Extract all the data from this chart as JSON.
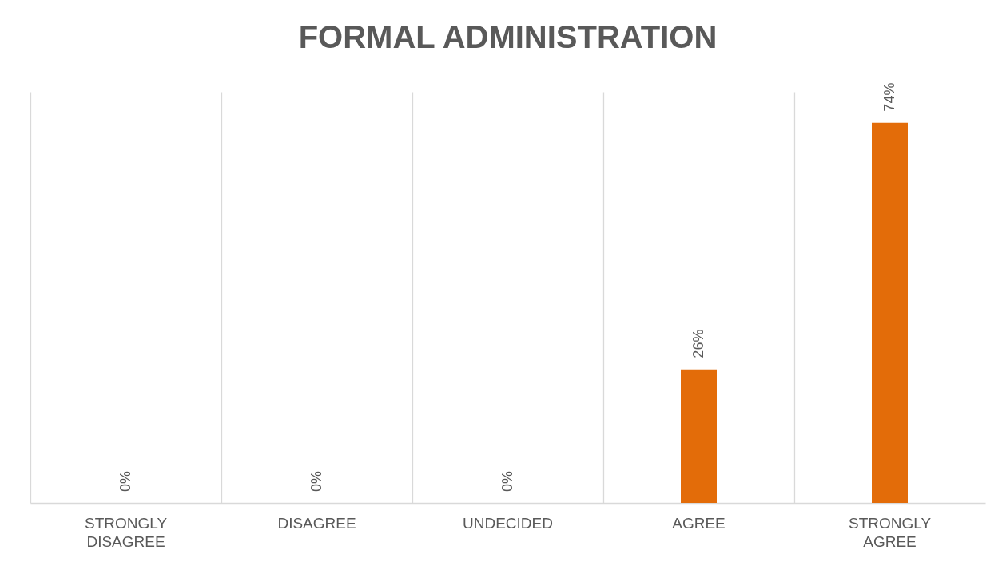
{
  "chart_data": {
    "type": "bar",
    "title": "FORMAL ADMINISTRATION",
    "categories": [
      "STRONGLY DISAGREE",
      "DISAGREE",
      "UNDECIDED",
      "AGREE",
      "STRONGLY AGREE"
    ],
    "values": [
      0,
      0,
      0,
      26,
      74
    ],
    "color": "#e36c09",
    "value_labels": [
      "0%",
      "0%",
      "0%",
      "26%",
      "74%"
    ],
    "grid": "x"
  }
}
